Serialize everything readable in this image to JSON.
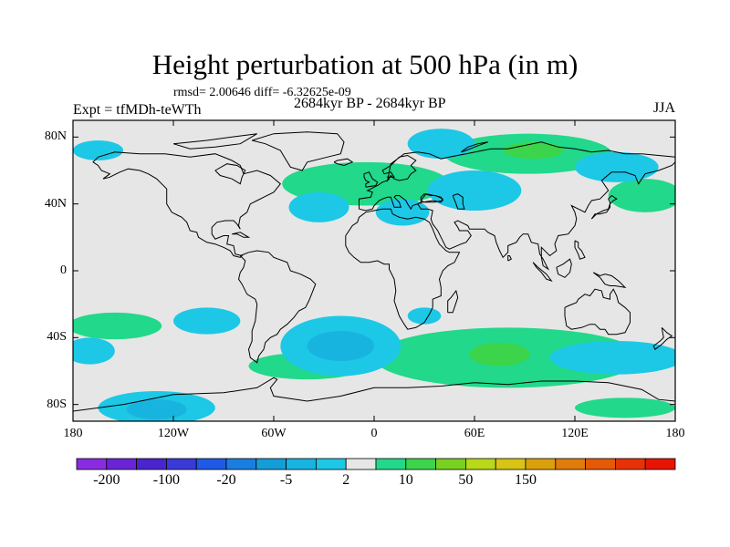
{
  "title": "Height perturbation at 500 hPa (in m)",
  "stats": "rmsd= 2.00646 diff= -6.32625e-09",
  "experiment": "Expt = tfMDh-teWTh",
  "period": "2684kyr BP - 2684kyr BP",
  "season": "JJA",
  "map": {
    "projection": "equirectangular",
    "lon_range": [
      -180,
      180
    ],
    "lat_range": [
      -90,
      90
    ],
    "background_color": "#e6e6e6",
    "coastline_color": "#000000",
    "lat_ticks": [
      {
        "value": 80,
        "label": "80N"
      },
      {
        "value": 40,
        "label": "40N"
      },
      {
        "value": 0,
        "label": "0"
      },
      {
        "value": -40,
        "label": "40S"
      },
      {
        "value": -80,
        "label": "80S"
      }
    ],
    "lon_ticks": [
      {
        "value": -180,
        "label": "180"
      },
      {
        "value": -120,
        "label": "120W"
      },
      {
        "value": -60,
        "label": "60W"
      },
      {
        "value": 0,
        "label": "0"
      },
      {
        "value": 60,
        "label": "60E"
      },
      {
        "value": 120,
        "label": "120E"
      },
      {
        "value": 180,
        "label": "180"
      }
    ]
  },
  "colorbar": {
    "colors": [
      "#8a2be2",
      "#6a24d6",
      "#4a24cc",
      "#3a3ad8",
      "#1f5ae6",
      "#1a7ee0",
      "#149ed8",
      "#18b4e0",
      "#1cc8e6",
      "#e6e6e6",
      "#22d88a",
      "#3cd44a",
      "#78d020",
      "#b8d81a",
      "#d8c414",
      "#dca00e",
      "#e07c0a",
      "#e45a08",
      "#e63206",
      "#e81402"
    ],
    "labels": [
      {
        "text": "-200",
        "boundary": 1
      },
      {
        "text": "-100",
        "boundary": 3
      },
      {
        "text": "-20",
        "boundary": 5
      },
      {
        "text": "-5",
        "boundary": 7
      },
      {
        "text": "2",
        "boundary": 9
      },
      {
        "text": "10",
        "boundary": 11
      },
      {
        "text": "50",
        "boundary": 13
      },
      {
        "text": "150",
        "boundary": 15
      }
    ]
  },
  "fields": [
    {
      "name": "green-n-atlantic-europe",
      "color": "#22d88a",
      "lon": -5,
      "lat": 52,
      "rx": 50,
      "ry": 13
    },
    {
      "name": "green-siberia",
      "color": "#22d88a",
      "lon": 92,
      "lat": 70,
      "rx": 50,
      "ry": 12
    },
    {
      "name": "green-n-pacific",
      "color": "#22d88a",
      "lon": 162,
      "lat": 45,
      "rx": 22,
      "ry": 10
    },
    {
      "name": "green-s-atlantic-band",
      "color": "#22d88a",
      "lon": -40,
      "lat": -57,
      "rx": 35,
      "ry": 8
    },
    {
      "name": "green-s-indian",
      "color": "#22d88a",
      "lon": 80,
      "lat": -52,
      "rx": 80,
      "ry": 18
    },
    {
      "name": "green-s-pacific-w",
      "color": "#22d88a",
      "lon": -155,
      "lat": -33,
      "rx": 28,
      "ry": 8
    },
    {
      "name": "green-s-antarctic-e",
      "color": "#22d88a",
      "lon": 150,
      "lat": -82,
      "rx": 30,
      "ry": 6
    },
    {
      "name": "blue-n-atlantic",
      "color": "#1cc8e6",
      "lon": -33,
      "lat": 38,
      "rx": 18,
      "ry": 9
    },
    {
      "name": "blue-barents",
      "color": "#1cc8e6",
      "lon": 40,
      "lat": 76,
      "rx": 20,
      "ry": 9
    },
    {
      "name": "blue-central-asia",
      "color": "#1cc8e6",
      "lon": 60,
      "lat": 48,
      "rx": 28,
      "ry": 12
    },
    {
      "name": "blue-mediterranean",
      "color": "#1cc8e6",
      "lon": 17,
      "lat": 35,
      "rx": 16,
      "ry": 8
    },
    {
      "name": "blue-n-pacific-sw",
      "color": "#1cc8e6",
      "lon": 145,
      "lat": 62,
      "rx": 25,
      "ry": 9
    },
    {
      "name": "blue-arctic-canada",
      "color": "#1cc8e6",
      "lon": -165,
      "lat": 72,
      "rx": 15,
      "ry": 6
    },
    {
      "name": "blue-s-atlantic",
      "color": "#1cc8e6",
      "lon": -20,
      "lat": -45,
      "rx": 36,
      "ry": 18
    },
    {
      "name": "blue-s-pacific",
      "color": "#1cc8e6",
      "lon": -130,
      "lat": -82,
      "rx": 35,
      "ry": 10
    },
    {
      "name": "blue-s-pacific-w",
      "color": "#1cc8e6",
      "lon": -170,
      "lat": -48,
      "rx": 15,
      "ry": 8
    },
    {
      "name": "blue-s-pacific-e",
      "color": "#1cc8e6",
      "lon": -100,
      "lat": -30,
      "rx": 20,
      "ry": 8
    },
    {
      "name": "blue-s-indian",
      "color": "#1cc8e6",
      "lon": 30,
      "lat": -27,
      "rx": 10,
      "ry": 5
    },
    {
      "name": "blue-australia-s",
      "color": "#1cc8e6",
      "lon": 145,
      "lat": -52,
      "rx": 40,
      "ry": 10
    },
    {
      "name": "darker-blue-s-atlantic",
      "color": "#18b4e0",
      "lon": -20,
      "lat": -45,
      "rx": 20,
      "ry": 9
    },
    {
      "name": "darker-blue-s-pacific",
      "color": "#18b4e0",
      "lon": -130,
      "lat": -83,
      "rx": 18,
      "ry": 6
    },
    {
      "name": "darker-green-s-indian",
      "color": "#3cd44a",
      "lon": 75,
      "lat": -50,
      "rx": 18,
      "ry": 7
    },
    {
      "name": "darker-green-siberia",
      "color": "#3cd44a",
      "lon": 95,
      "lat": 72,
      "rx": 18,
      "ry": 5
    }
  ]
}
